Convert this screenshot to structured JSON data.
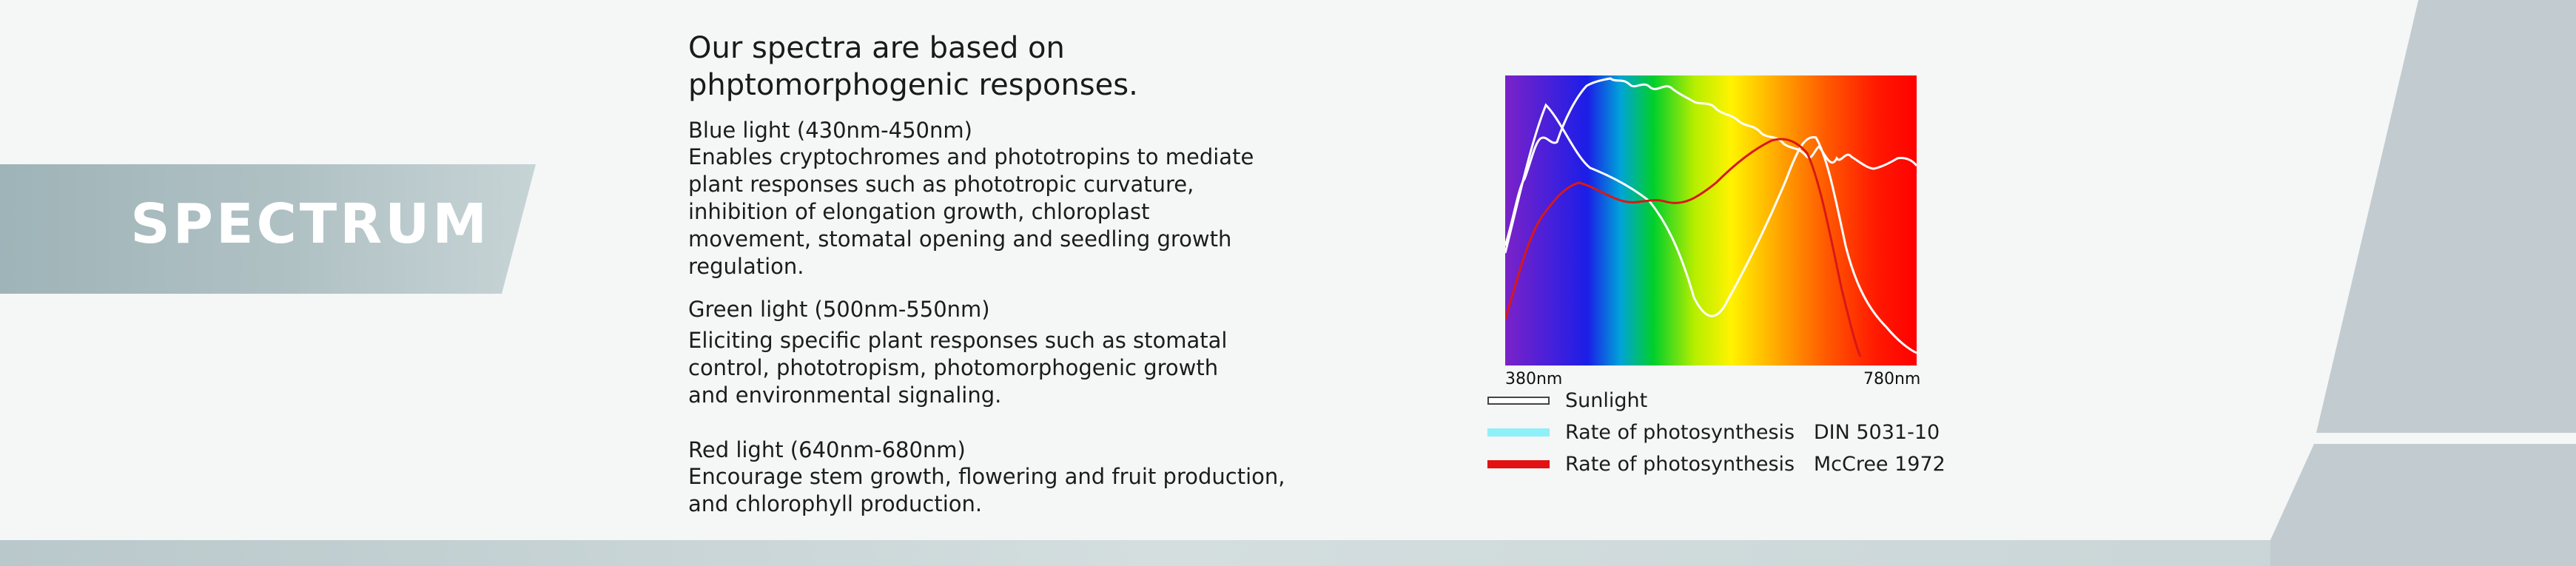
{
  "banner": {
    "title": "SPECTRUM"
  },
  "intro": {
    "heading_line1": "Our spectra are based on",
    "heading_line2": "phptomorphogenic responses."
  },
  "sections": [
    {
      "title": "Blue light (430nm-450nm)",
      "lines": [
        "Enables cryptochromes and phototropins to mediate",
        "plant responses such as phototropic curvature,",
        "inhibition of elongation growth, chloroplast",
        "movement, stomatal opening and seedling growth",
        "regulation."
      ]
    },
    {
      "title": "Green light (500nm-550nm)",
      "lines": [
        "Eliciting specific plant responses such as stomatal",
        "control, phototropism, photomorphogenic growth",
        "and environmental signaling."
      ]
    },
    {
      "title": "Red light (640nm-680nm)",
      "lines": [
        "Encourage stem growth, flowering and fruit production,",
        "and chlorophyll production."
      ]
    }
  ],
  "chart": {
    "x_min_label": "380nm",
    "x_max_label": "780nm",
    "legend": [
      {
        "label": "Sunlight",
        "color": "#ffffff"
      },
      {
        "label": "Rate of photosynthesis   DIN 5031-10",
        "color": "#8ef0f8"
      },
      {
        "label": "Rate of photosynthesis   McCree 1972",
        "color": "#e21212"
      }
    ]
  }
}
